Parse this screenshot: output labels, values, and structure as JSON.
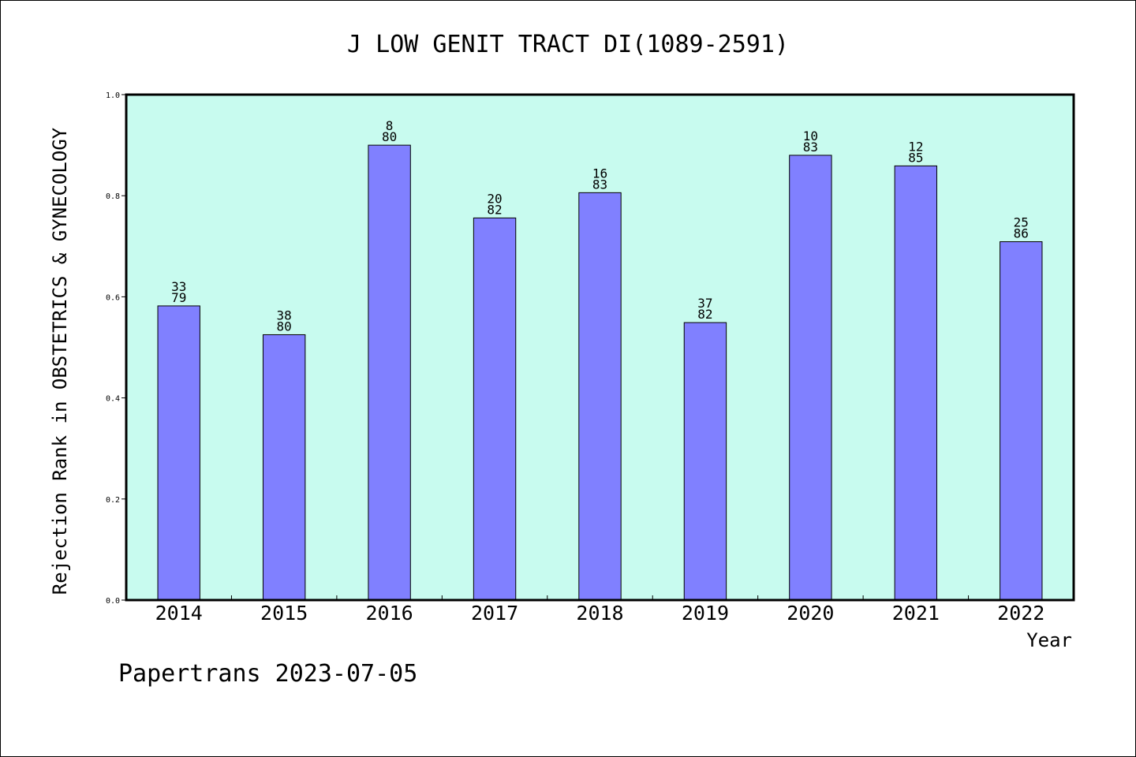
{
  "chart_data": {
    "type": "bar",
    "title": "J LOW GENIT TRACT DI(1089-2591)",
    "xlabel": "Year",
    "ylabel": "Rejection Rank in OBSTETRICS & GYNECOLOGY",
    "ylim": [
      0,
      1.0
    ],
    "yticks": [
      "0.0",
      "0.2",
      "0.4",
      "0.6",
      "0.8",
      "1.0"
    ],
    "categories": [
      "2014",
      "2015",
      "2016",
      "2017",
      "2018",
      "2019",
      "2020",
      "2021",
      "2022"
    ],
    "values": [
      0.582,
      0.525,
      0.9,
      0.756,
      0.806,
      0.549,
      0.88,
      0.859,
      0.709
    ],
    "data_labels": [
      [
        "33",
        "79"
      ],
      [
        "38",
        "80"
      ],
      [
        "8",
        "80"
      ],
      [
        "20",
        "82"
      ],
      [
        "16",
        "83"
      ],
      [
        "37",
        "82"
      ],
      [
        "10",
        "83"
      ],
      [
        "12",
        "85"
      ],
      [
        "25",
        "86"
      ]
    ],
    "colors": {
      "plot_background": "#c8fbef",
      "bar_fill": "#8080ff",
      "bar_stroke": "#000000"
    },
    "grid": false,
    "legend": "none"
  },
  "footer": "Papertrans 2023-07-05"
}
